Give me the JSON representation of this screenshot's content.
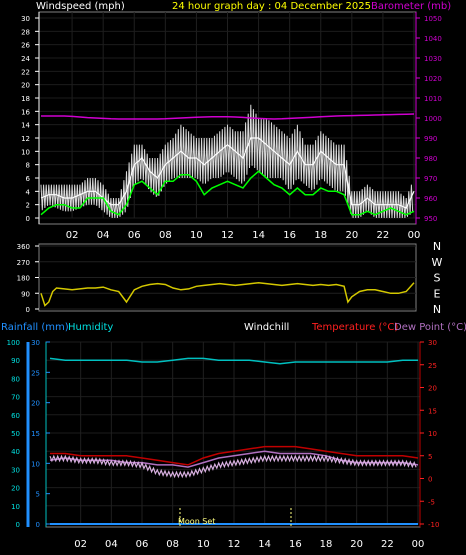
{
  "header": {
    "left_label": "Windspeed (mph)",
    "title": "24 hour graph day : 04 December 2025",
    "right_label": "Barometer (mb)"
  },
  "lower_header": {
    "rainfall": "Rainfall (mm)",
    "humidity": "Humidity",
    "windchill": "Windchill",
    "temperature": "Temperature (°C)",
    "dewpoint": "Dew Point (°C)"
  },
  "moon_label": "Moon Set",
  "colors": {
    "wind_avg": "#00ff00",
    "wind_gust": "#ffffff",
    "barometer": "#d000d0",
    "direction": "#d4c800",
    "humidity": "#00c0c0",
    "rainfall": "#2090ff",
    "temperature": "#c00000",
    "dewpoint": "#b070c0",
    "windchill": "#ffffff"
  },
  "chart_data": [
    {
      "type": "line",
      "x_ticks": [
        "02",
        "04",
        "06",
        "08",
        "10",
        "12",
        "14",
        "16",
        "18",
        "20",
        "22",
        "00"
      ],
      "left_axis": {
        "ticks": [
          "0",
          "2",
          "4",
          "6",
          "8",
          "10",
          "12",
          "14",
          "16",
          "18",
          "20",
          "22",
          "24",
          "26",
          "28",
          "30"
        ],
        "ylim": [
          0,
          30
        ]
      },
      "right_axis": {
        "ticks": [
          "950",
          "960",
          "970",
          "980",
          "990",
          "1000",
          "1010",
          "1020",
          "1030",
          "1040",
          "1050"
        ],
        "ylim": [
          950,
          1050
        ]
      },
      "hours": [
        0,
        0.5,
        1,
        1.5,
        2,
        2.5,
        3,
        3.5,
        4,
        4.5,
        5,
        5.5,
        6,
        6.5,
        7,
        7.5,
        8,
        8.5,
        9,
        9.5,
        10,
        10.5,
        11,
        11.5,
        12,
        12.5,
        13,
        13.5,
        14,
        14.5,
        15,
        15.5,
        16,
        16.5,
        17,
        17.5,
        18,
        18.5,
        19,
        19.5,
        20,
        20.5,
        21,
        21.5,
        22,
        22.5,
        23,
        23.5,
        24
      ],
      "series": [
        {
          "values": [
            3,
            3.5,
            3.5,
            3,
            3,
            3.5,
            4,
            4,
            3,
            2,
            2,
            4,
            8,
            9,
            7,
            6,
            8,
            9,
            10,
            9,
            9,
            8,
            9,
            10,
            11,
            10,
            9,
            12,
            12,
            11,
            10,
            9,
            8,
            10,
            8,
            8,
            10,
            9,
            8,
            8,
            2,
            2,
            3,
            2,
            2,
            2,
            2,
            1.5,
            4
          ],
          "min": [
            1,
            2,
            1.5,
            1,
            1,
            1.5,
            2,
            2,
            1,
            0,
            0,
            1,
            5,
            6,
            4,
            3,
            5,
            6,
            6,
            6,
            6,
            5,
            6,
            6,
            7,
            6,
            5,
            8,
            7,
            6,
            6,
            6,
            4,
            6,
            5,
            4,
            6,
            5,
            4,
            4,
            0,
            0,
            1,
            0,
            0,
            0,
            0,
            0,
            1
          ],
          "max": [
            5,
            5,
            5,
            5,
            5,
            5,
            6,
            6,
            5,
            3,
            3,
            7,
            11,
            11,
            9,
            9,
            11,
            12,
            14,
            13,
            12,
            12,
            12,
            13,
            14,
            13,
            13,
            17,
            15,
            15,
            14,
            13,
            12,
            14,
            11,
            11,
            13,
            12,
            11,
            11,
            4,
            4,
            5,
            4,
            4,
            4,
            4,
            3,
            6
          ]
        },
        {
          "values": [
            0.5,
            1.5,
            2,
            2,
            1.5,
            1.5,
            3,
            3,
            3,
            1,
            0.5,
            2,
            5,
            5.5,
            4.5,
            3.5,
            5.5,
            5.5,
            6.5,
            6.5,
            5.5,
            3.5,
            4.5,
            5,
            5.5,
            5,
            4.5,
            6,
            7,
            6,
            5,
            4.5,
            3.5,
            4.5,
            3.5,
            3.5,
            4.5,
            4,
            4,
            3.5,
            0.5,
            0.5,
            1,
            0.5,
            1,
            1.5,
            1,
            0.5,
            1
          ]
        },
        {
          "values": [
            1001,
            1001,
            1001,
            1001,
            1000.8,
            1000.5,
            1000.2,
            1000,
            999.8,
            999.6,
            999.5,
            999.5,
            999.5,
            999.5,
            999.5,
            999.5,
            999.6,
            999.8,
            1000,
            1000.2,
            1000.4,
            1000.5,
            1000.6,
            1000.6,
            1000.6,
            1000.5,
            1000.3,
            1000,
            999.8,
            999.6,
            999.5,
            999.6,
            999.8,
            1000,
            1000.2,
            1000.4,
            1000.6,
            1000.8,
            1001,
            1001.1,
            1001.2,
            1001.3,
            1001.4,
            1001.5,
            1001.6,
            1001.7,
            1001.8,
            1001.9,
            1002
          ]
        }
      ]
    },
    {
      "type": "line",
      "x_ticks": [],
      "left_axis": {
        "ticks": [
          "360",
          "270",
          "180",
          "90",
          "0"
        ],
        "ylim": [
          0,
          360
        ]
      },
      "right_labels": [
        "N",
        "W",
        "S",
        "E",
        "N"
      ],
      "hours": [
        0,
        0.25,
        0.5,
        0.75,
        1,
        1.5,
        2,
        2.5,
        3,
        3.5,
        4,
        4.5,
        5,
        5.5,
        6,
        6.5,
        7,
        7.5,
        8,
        8.5,
        9,
        9.5,
        10,
        10.5,
        11,
        11.5,
        12,
        12.5,
        13,
        13.5,
        14,
        14.5,
        15,
        15.5,
        16,
        16.5,
        17,
        17.5,
        18,
        18.5,
        19,
        19.5,
        19.75,
        20,
        20.5,
        21,
        21.5,
        22,
        22.5,
        23,
        23.5,
        24
      ],
      "series": [
        {
          "values": [
            90,
            20,
            40,
            100,
            120,
            115,
            110,
            115,
            120,
            120,
            125,
            110,
            100,
            40,
            110,
            130,
            140,
            145,
            140,
            120,
            110,
            115,
            130,
            135,
            140,
            145,
            140,
            135,
            140,
            145,
            150,
            145,
            140,
            135,
            140,
            145,
            140,
            135,
            140,
            135,
            140,
            130,
            40,
            70,
            100,
            110,
            110,
            100,
            90,
            90,
            100,
            150
          ]
        }
      ]
    },
    {
      "type": "line",
      "x_ticks": [
        "02",
        "04",
        "06",
        "08",
        "10",
        "12",
        "14",
        "16",
        "18",
        "20",
        "22",
        "00"
      ],
      "left_axis_rain": {
        "ticks": [
          "0",
          "5",
          "10",
          "15",
          "20",
          "25",
          "30"
        ],
        "ylim": [
          0,
          30
        ]
      },
      "left_axis_humidity": {
        "ticks": [
          "0",
          "10",
          "20",
          "30",
          "40",
          "50",
          "60",
          "70",
          "80",
          "90",
          "100"
        ],
        "ylim": [
          0,
          100
        ]
      },
      "right_axis": {
        "ticks": [
          "-10",
          "-5",
          "0",
          "5",
          "10",
          "15",
          "20",
          "25",
          "30"
        ],
        "ylim": [
          -10,
          30
        ]
      },
      "hours": [
        0,
        1,
        2,
        3,
        4,
        5,
        6,
        7,
        8,
        9,
        10,
        11,
        12,
        13,
        14,
        15,
        16,
        17,
        18,
        19,
        20,
        21,
        22,
        23,
        24
      ],
      "series": [
        {
          "values": [
            0,
            0,
            0,
            0,
            0,
            0,
            0,
            0,
            0,
            0,
            0,
            0,
            0,
            0,
            0,
            0,
            0,
            0,
            0,
            0,
            0,
            0,
            0,
            0,
            0
          ]
        },
        {
          "values": [
            91,
            90,
            90,
            90,
            90,
            90,
            89,
            89,
            90,
            91,
            91,
            90,
            90,
            90,
            89,
            88,
            89,
            89,
            89,
            89,
            89,
            89,
            89,
            90,
            90
          ]
        },
        {
          "values": [
            5.5,
            5.5,
            5,
            5,
            5,
            5,
            4.5,
            4,
            3.5,
            3,
            4.5,
            5.5,
            6,
            6.5,
            7,
            7,
            7,
            6.5,
            6,
            5.5,
            5,
            5,
            5,
            5,
            4.5
          ]
        },
        {
          "values": [
            4,
            4.5,
            4,
            4,
            4,
            3.5,
            3.5,
            3,
            3,
            2.5,
            3.5,
            4.5,
            5,
            5.5,
            6,
            5.5,
            5.5,
            5.5,
            5,
            4,
            3.5,
            3.5,
            3.5,
            3.5,
            3
          ]
        },
        {
          "values": [
            4.5,
            4.5,
            4,
            4,
            3.5,
            3.5,
            3,
            1.5,
            1,
            1,
            2,
            3,
            3.5,
            4,
            4.5,
            4.5,
            4.5,
            4.5,
            4.5,
            4,
            3.5,
            3.5,
            3.5,
            3.5,
            3
          ]
        }
      ]
    }
  ]
}
